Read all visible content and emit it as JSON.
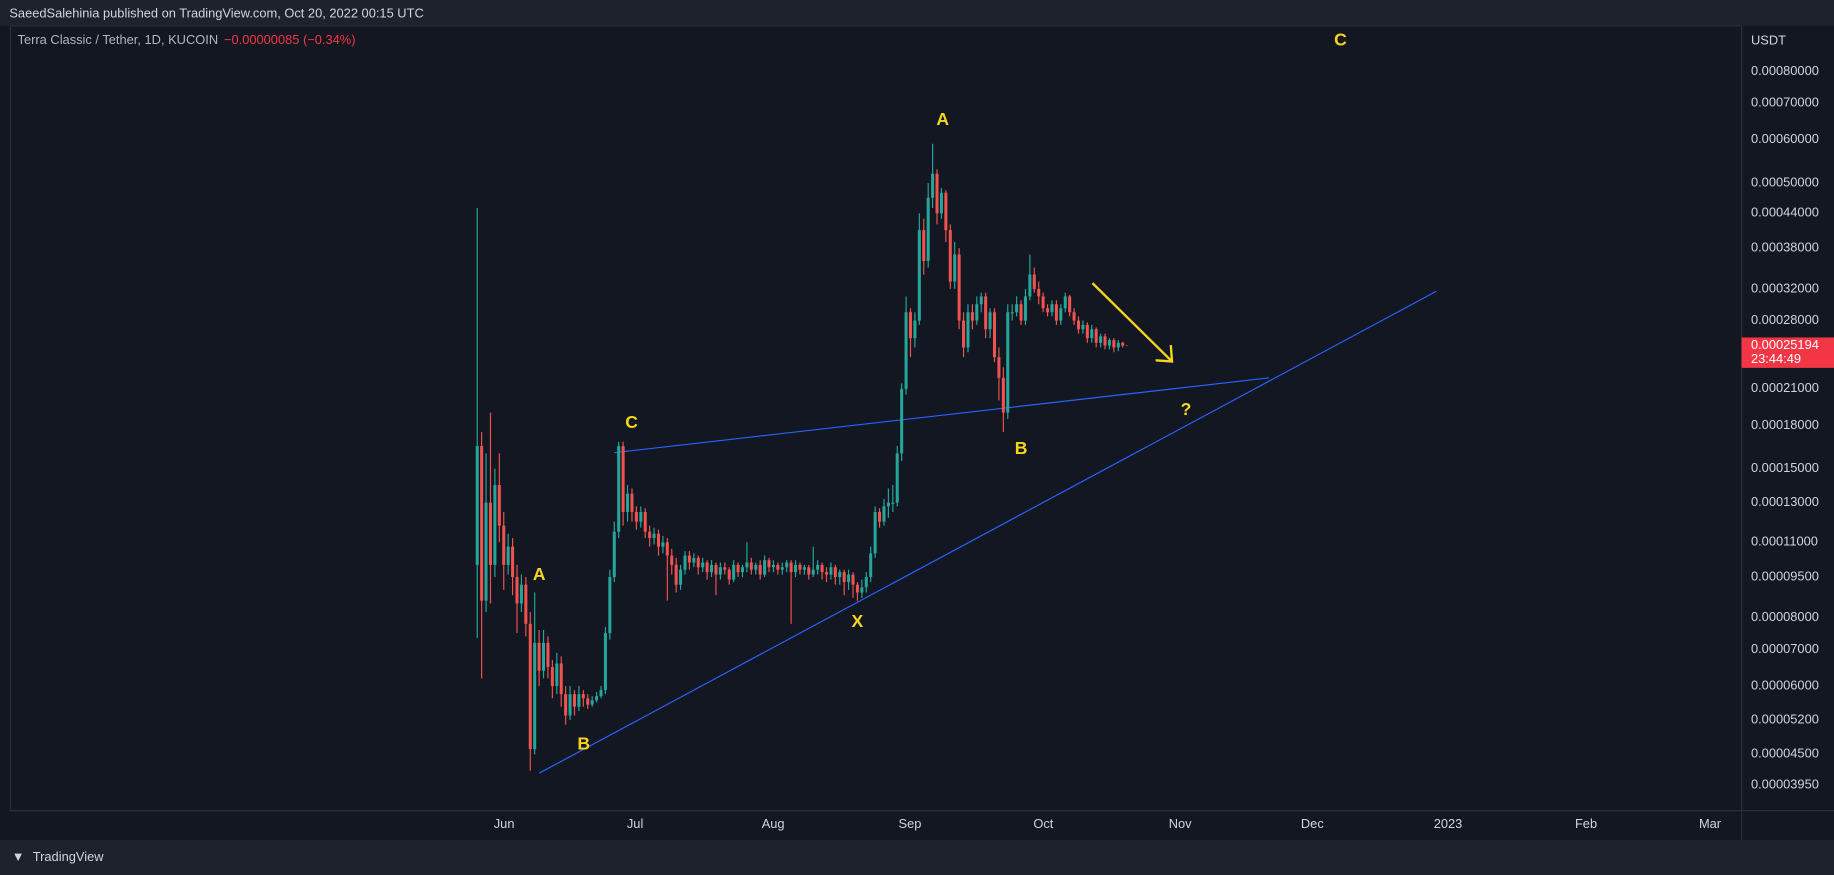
{
  "header": {
    "title": "SaeedSalehinia published on TradingView.com, Oct 20, 2022 00:15 UTC"
  },
  "footer": {
    "brand": "TradingView"
  },
  "chart_data": {
    "type": "candlestick",
    "symbol": "Terra Classic / Tether, 1D, KUCOIN",
    "change": "−0.00000085 (−0.34%)",
    "y_unit": "USDT",
    "countdown": "23:44:49",
    "log_scale": true,
    "grid": false,
    "up_color": "#26a69a",
    "down_color": "#ef5350",
    "ylim": [
      3.55e-05,
      0.00097
    ],
    "yticks": [
      {
        "value": 0.0008,
        "label": "0.00080000"
      },
      {
        "value": 0.0007,
        "label": "0.00070000"
      },
      {
        "value": 0.0006,
        "label": "0.00060000"
      },
      {
        "value": 0.0005,
        "label": "0.00050000"
      },
      {
        "value": 0.00044,
        "label": "0.00044000"
      },
      {
        "value": 0.00038,
        "label": "0.00038000"
      },
      {
        "value": 0.00032,
        "label": "0.00032000"
      },
      {
        "value": 0.00028,
        "label": "0.00028000"
      },
      {
        "value": 0.00021,
        "label": "0.00021000"
      },
      {
        "value": 0.00018,
        "label": "0.00018000"
      },
      {
        "value": 0.00015,
        "label": "0.00015000"
      },
      {
        "value": 0.00013,
        "label": "0.00013000"
      },
      {
        "value": 0.00011,
        "label": "0.00011000"
      },
      {
        "value": 9.5e-05,
        "label": "0.00009500"
      },
      {
        "value": 8e-05,
        "label": "0.00008000"
      },
      {
        "value": 7e-05,
        "label": "0.00007000"
      },
      {
        "value": 6e-05,
        "label": "0.00006000"
      },
      {
        "value": 5.2e-05,
        "label": "0.00005200"
      },
      {
        "value": 4.5e-05,
        "label": "0.00004500"
      },
      {
        "value": 3.95e-05,
        "label": "0.00003950"
      }
    ],
    "x_axis_labels": [
      "Jun",
      "Jul",
      "Aug",
      "Sep",
      "Oct",
      "Nov",
      "Dec",
      "2023",
      "Feb",
      "Mar"
    ],
    "annotations": [
      "A",
      "B",
      "C",
      "X",
      "A",
      "B",
      "?",
      "C"
    ],
    "open": [
      0.0001,
      0.000165,
      8.6e-05,
      0.00013,
      0.0001,
      0.00014,
      0.000118,
      0.0001,
      0.000108,
      9.5e-05,
      8.5e-05,
      9.2e-05,
      7.8e-05,
      4.6e-05,
      7.2e-05,
      6.4e-05,
      7.2e-05,
      6.5e-05,
      6e-05,
      6.6e-05,
      5.8e-05,
      5.3e-05,
      5.8e-05,
      5.5e-05,
      5.8e-05,
      5.7e-05,
      5.55e-05,
      5.65e-05,
      5.75e-05,
      5.9e-05,
      7.5e-05,
      9.5e-05,
      0.000115,
      0.000165,
      0.000125,
      0.000135,
      0.000125,
      0.00012,
      0.000125,
      0.000115,
      0.000112,
      0.000114,
      0.000108,
      0.00011,
      0.000104,
      0.0001,
      9.2e-05,
      9.8e-05,
      0.000104,
      0.000101,
      0.000103,
      9.9e-05,
      0.000101,
      9.7e-05,
      0.0001,
      9.6e-05,
      9.9e-05,
      9.8e-05,
      9.4e-05,
      0.0001,
      9.7e-05,
      9.9e-05,
      0.000101,
      9.8e-05,
      0.0001,
      9.6e-05,
      0.000102,
      9.9e-05,
      0.0001,
      9.8e-05,
      9.9e-05,
      0.000101,
      9.7e-05,
      0.0001,
      9.8e-05,
      9.9e-05,
      9.6e-05,
      9.8e-05,
      0.0001,
      9.7e-05,
      9.6e-05,
      9.9e-05,
      9.5e-05,
      9.7e-05,
      9.3e-05,
      9.6e-05,
      9.2e-05,
      8.9e-05,
      9.1e-05,
      9.5e-05,
      0.000105,
      0.000125,
      0.00012,
      0.000128,
      0.00013,
      0.00013,
      0.00016,
      0.00021,
      0.00029,
      0.00026,
      0.00028,
      0.00041,
      0.00036,
      0.00047,
      0.00052,
      0.00044,
      0.00048,
      0.00041,
      0.00033,
      0.00037,
      0.00028,
      0.00025,
      0.00029,
      0.00028,
      0.0003,
      0.00031,
      0.00027,
      0.00029,
      0.00024,
      0.00022,
      0.00019,
      0.00029,
      0.00029,
      0.0003,
      0.00028,
      0.00031,
      0.00034,
      0.00032,
      0.00031,
      0.000295,
      0.00029,
      0.0003,
      0.00028,
      0.000295,
      0.00031,
      0.00029,
      0.00028,
      0.00027,
      0.000275,
      0.00026,
      0.00027,
      0.000255,
      0.000262,
      0.000252,
      0.000258,
      0.00025,
      0.000255
    ],
    "high": [
      0.00045,
      0.000175,
      0.00016,
      0.00019,
      0.00015,
      0.00016,
      0.000125,
      0.000114,
      0.000112,
      0.0001,
      9.6e-05,
      9.5e-05,
      8.2e-05,
      8.9e-05,
      7.6e-05,
      7.6e-05,
      7.4e-05,
      6.7e-05,
      6.9e-05,
      6.8e-05,
      6e-05,
      6e-05,
      5.9e-05,
      6e-05,
      5.9e-05,
      5.8e-05,
      5.75e-05,
      5.85e-05,
      6e-05,
      7.7e-05,
      9.8e-05,
      0.00012,
      0.000168,
      0.000168,
      0.00014,
      0.000138,
      0.000128,
      0.000128,
      0.000127,
      0.000118,
      0.000117,
      0.000116,
      0.000113,
      0.000112,
      0.000107,
      0.000103,
      0.0001,
      0.000106,
      0.000106,
      0.000105,
      0.000104,
      0.000103,
      0.000102,
      0.000102,
      0.000101,
      0.000101,
      0.000101,
      9.9e-05,
      0.000102,
      0.000101,
      0.0001,
      0.00011,
      0.000103,
      0.000101,
      0.000102,
      0.000104,
      0.000103,
      0.000102,
      0.000101,
      0.000101,
      0.000102,
      0.000102,
      0.000102,
      0.000101,
      0.0001,
      0.0001,
      0.000108,
      0.000102,
      0.000101,
      9.9e-05,
      0.000101,
      0.0001,
      9.8e-05,
      9.8e-05,
      9.8e-05,
      9.7e-05,
      9.3e-05,
      9.4e-05,
      9.7e-05,
      0.000108,
      0.000128,
      0.000127,
      0.000132,
      0.000138,
      0.00014,
      0.000165,
      0.000215,
      0.00031,
      0.000295,
      0.00029,
      0.00044,
      0.00043,
      0.0005,
      0.00059,
      0.00053,
      0.00049,
      0.000485,
      0.00042,
      0.00039,
      0.00038,
      0.00029,
      0.0003,
      0.0003,
      0.00031,
      0.000315,
      0.000315,
      0.000295,
      0.000295,
      0.00025,
      0.00023,
      0.0003,
      0.0003,
      0.00031,
      0.000305,
      0.00032,
      0.00037,
      0.00035,
      0.00033,
      0.000315,
      0.0003,
      0.000305,
      0.000305,
      0.0003,
      0.000315,
      0.000312,
      0.000295,
      0.000285,
      0.00028,
      0.000278,
      0.000275,
      0.000272,
      0.000265,
      0.000265,
      0.00026,
      0.00026,
      0.000258,
      0.000256
    ],
    "low": [
      7.35e-05,
      6.2e-05,
      8.2e-05,
      8.5e-05,
      9.5e-05,
      0.00011,
      9e-05,
      9.6e-05,
      8.8e-05,
      7.5e-05,
      8.2e-05,
      7.4e-05,
      4.2e-05,
      4.5e-05,
      6e-05,
      6.2e-05,
      6.2e-05,
      5.7e-05,
      5.8e-05,
      5.5e-05,
      5.1e-05,
      5.2e-05,
      5.3e-05,
      5.4e-05,
      5.5e-05,
      5.45e-05,
      5.5e-05,
      5.6e-05,
      5.7e-05,
      5.8e-05,
      7.3e-05,
      9.3e-05,
      0.000112,
      0.000118,
      0.00012,
      0.00012,
      0.000116,
      0.000117,
      0.000112,
      0.000108,
      0.000109,
      0.000104,
      0.000105,
      8.6e-05,
      9.6e-05,
      8.9e-05,
      9e-05,
      9.6e-05,
      9.8e-05,
      9.9e-05,
      9.6e-05,
      9.7e-05,
      9.4e-05,
      9.5e-05,
      8.8e-05,
      9.4e-05,
      9.6e-05,
      9.2e-05,
      9.3e-05,
      9.5e-05,
      9.5e-05,
      9.7e-05,
      9.6e-05,
      9.6e-05,
      9.4e-05,
      9.5e-05,
      9.7e-05,
      9.7e-05,
      9.6e-05,
      9.6e-05,
      9.7e-05,
      7.8e-05,
      9.5e-05,
      9.6e-05,
      9.6e-05,
      9.4e-05,
      9.5e-05,
      9.6e-05,
      9.4e-05,
      9.3e-05,
      9.4e-05,
      9.2e-05,
      9.2e-05,
      8.8e-05,
      9e-05,
      8.7e-05,
      8.6e-05,
      8.7e-05,
      8.9e-05,
      9.3e-05,
      0.000103,
      0.000117,
      0.000118,
      0.000122,
      0.000125,
      0.000128,
      0.000155,
      0.000205,
      0.00024,
      0.00025,
      0.000275,
      0.00034,
      0.00035,
      0.00045,
      0.00042,
      0.00043,
      0.00039,
      0.00032,
      0.00032,
      0.00027,
      0.00024,
      0.000245,
      0.00027,
      0.000275,
      0.00029,
      0.00026,
      0.00026,
      0.000235,
      0.0002,
      0.000175,
      0.000185,
      0.00028,
      0.000285,
      0.000275,
      0.000275,
      0.000305,
      0.000315,
      0.0003,
      0.00029,
      0.000285,
      0.000285,
      0.000275,
      0.000275,
      0.00029,
      0.000285,
      0.000275,
      0.000265,
      0.000265,
      0.000255,
      0.000255,
      0.00025,
      0.00025,
      0.000248,
      0.000248,
      0.000245,
      0.000246,
      0.00025
    ],
    "close": [
      0.000165,
      8.6e-05,
      0.00013,
      0.0001,
      0.00014,
      0.000118,
      0.0001,
      0.000108,
      9.5e-05,
      8.5e-05,
      9.2e-05,
      7.8e-05,
      4.6e-05,
      7.2e-05,
      6.4e-05,
      7.2e-05,
      6.5e-05,
      6e-05,
      6.6e-05,
      5.8e-05,
      5.3e-05,
      5.8e-05,
      5.5e-05,
      5.8e-05,
      5.7e-05,
      5.55e-05,
      5.65e-05,
      5.75e-05,
      5.9e-05,
      7.5e-05,
      9.5e-05,
      0.000115,
      0.000165,
      0.000125,
      0.000135,
      0.000125,
      0.00012,
      0.000125,
      0.000115,
      0.000112,
      0.000114,
      0.000108,
      0.00011,
      0.000104,
      0.0001,
      9.2e-05,
      9.8e-05,
      0.000104,
      0.000101,
      0.000103,
      9.9e-05,
      0.000101,
      9.7e-05,
      0.0001,
      9.6e-05,
      9.9e-05,
      9.8e-05,
      9.4e-05,
      0.0001,
      9.7e-05,
      9.9e-05,
      0.000101,
      9.8e-05,
      0.0001,
      9.6e-05,
      0.000102,
      9.9e-05,
      0.0001,
      9.8e-05,
      9.9e-05,
      0.000101,
      9.7e-05,
      0.0001,
      9.8e-05,
      9.9e-05,
      9.6e-05,
      9.8e-05,
      0.0001,
      9.7e-05,
      9.6e-05,
      9.9e-05,
      9.5e-05,
      9.7e-05,
      9.3e-05,
      9.6e-05,
      9.2e-05,
      8.9e-05,
      9.1e-05,
      9.5e-05,
      0.000105,
      0.000125,
      0.00012,
      0.000128,
      0.00013,
      0.00013,
      0.00016,
      0.00021,
      0.00029,
      0.00026,
      0.00028,
      0.00041,
      0.00036,
      0.00047,
      0.00052,
      0.00044,
      0.00048,
      0.00041,
      0.00033,
      0.00037,
      0.00028,
      0.00025,
      0.00029,
      0.00028,
      0.0003,
      0.00031,
      0.00027,
      0.00029,
      0.00024,
      0.00022,
      0.00019,
      0.00029,
      0.00029,
      0.0003,
      0.00028,
      0.00031,
      0.00034,
      0.00032,
      0.00031,
      0.000295,
      0.00029,
      0.0003,
      0.00028,
      0.000295,
      0.00031,
      0.00029,
      0.00028,
      0.00027,
      0.000275,
      0.00026,
      0.00027,
      0.000255,
      0.000262,
      0.000252,
      0.000258,
      0.00025,
      0.000255,
      0.00025194
    ]
  }
}
